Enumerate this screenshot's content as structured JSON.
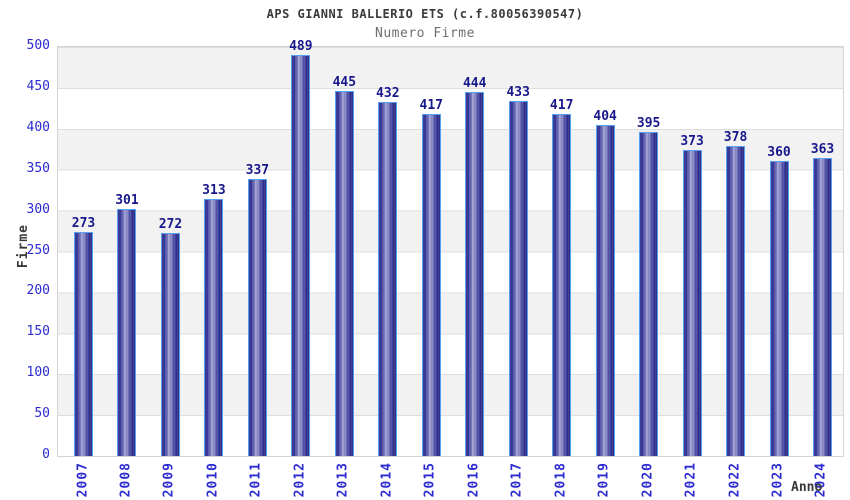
{
  "header": {
    "title": "APS GIANNI BALLERIO ETS (c.f.80056390547)",
    "subtitle": "Numero Firme"
  },
  "chart_data": {
    "type": "bar",
    "title": "APS GIANNI BALLERIO ETS (c.f.80056390547)",
    "subtitle": "Numero Firme",
    "xlabel": "Anno",
    "ylabel": "Firme",
    "categories": [
      "2007",
      "2008",
      "2009",
      "2010",
      "2011",
      "2012",
      "2013",
      "2014",
      "2015",
      "2016",
      "2017",
      "2018",
      "2019",
      "2020",
      "2021",
      "2022",
      "2023",
      "2024"
    ],
    "values": [
      273,
      301,
      272,
      313,
      337,
      489,
      445,
      432,
      417,
      444,
      433,
      417,
      404,
      395,
      373,
      378,
      360,
      363
    ],
    "ylim": [
      0,
      500
    ],
    "ytick_step": 50,
    "grid": "horizontal-bands",
    "legend": "none",
    "bar_value_labels": true,
    "colors": {
      "title": "#3a3a3a",
      "subtitle": "#6e6e6e",
      "axis_titles": "#3a3a3a",
      "tick_labels": "#2b2bd0",
      "value_labels": "#18188c",
      "bar_dark": "#23237d",
      "bar_light": "#a2a2da",
      "bar_border": "#55a0f0",
      "band": "#f2f2f2",
      "gridline": "#dedede",
      "plot_border": "#d4d4d4"
    }
  }
}
